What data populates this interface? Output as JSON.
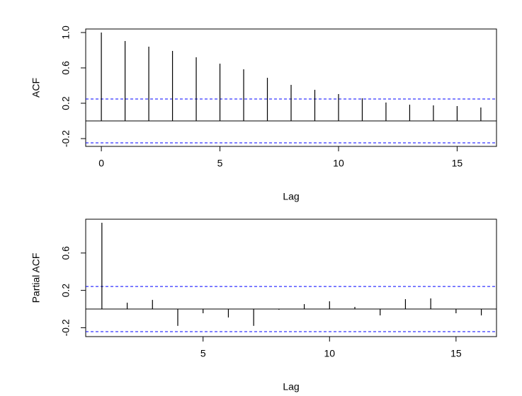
{
  "chart_data": [
    {
      "type": "acf",
      "xlabel": "Lag",
      "ylabel": "ACF",
      "x": [
        0,
        1,
        2,
        3,
        4,
        5,
        6,
        7,
        8,
        9,
        10,
        11,
        12,
        13,
        14,
        15,
        16
      ],
      "values": [
        1.0,
        0.904,
        0.84,
        0.792,
        0.72,
        0.648,
        0.584,
        0.488,
        0.408,
        0.352,
        0.304,
        0.256,
        0.208,
        0.184,
        0.176,
        0.168,
        0.152
      ],
      "color": "#000000",
      "conf_limit": 0.248,
      "conf_color": "#0000ff",
      "xlim": [
        -0.66,
        16.66
      ],
      "ylim": [
        -0.288,
        1.04
      ],
      "xticks": [
        0,
        5,
        10,
        15
      ],
      "yticks": [
        -0.2,
        0.2,
        0.6,
        {
          "value": 1,
          "label": "1.0"
        }
      ]
    },
    {
      "type": "acf",
      "xlabel": "Lag",
      "ylabel": "Partial ACF",
      "x": [
        1,
        2,
        3,
        4,
        5,
        6,
        7,
        8,
        9,
        10,
        11,
        12,
        13,
        14,
        15,
        16
      ],
      "values": [
        0.924,
        0.068,
        0.098,
        -0.18,
        -0.045,
        -0.09,
        -0.18,
        -0.008,
        0.053,
        0.083,
        0.023,
        -0.068,
        0.106,
        0.114,
        -0.045,
        -0.068
      ],
      "color": "#000000",
      "conf_limit": 0.242,
      "conf_color": "#0000ff",
      "xlim": [
        0.36,
        16.6
      ],
      "ylim": [
        -0.295,
        0.962
      ],
      "xticks": [
        5,
        10,
        15
      ],
      "yticks": [
        -0.2,
        0.2,
        0.6
      ]
    }
  ]
}
